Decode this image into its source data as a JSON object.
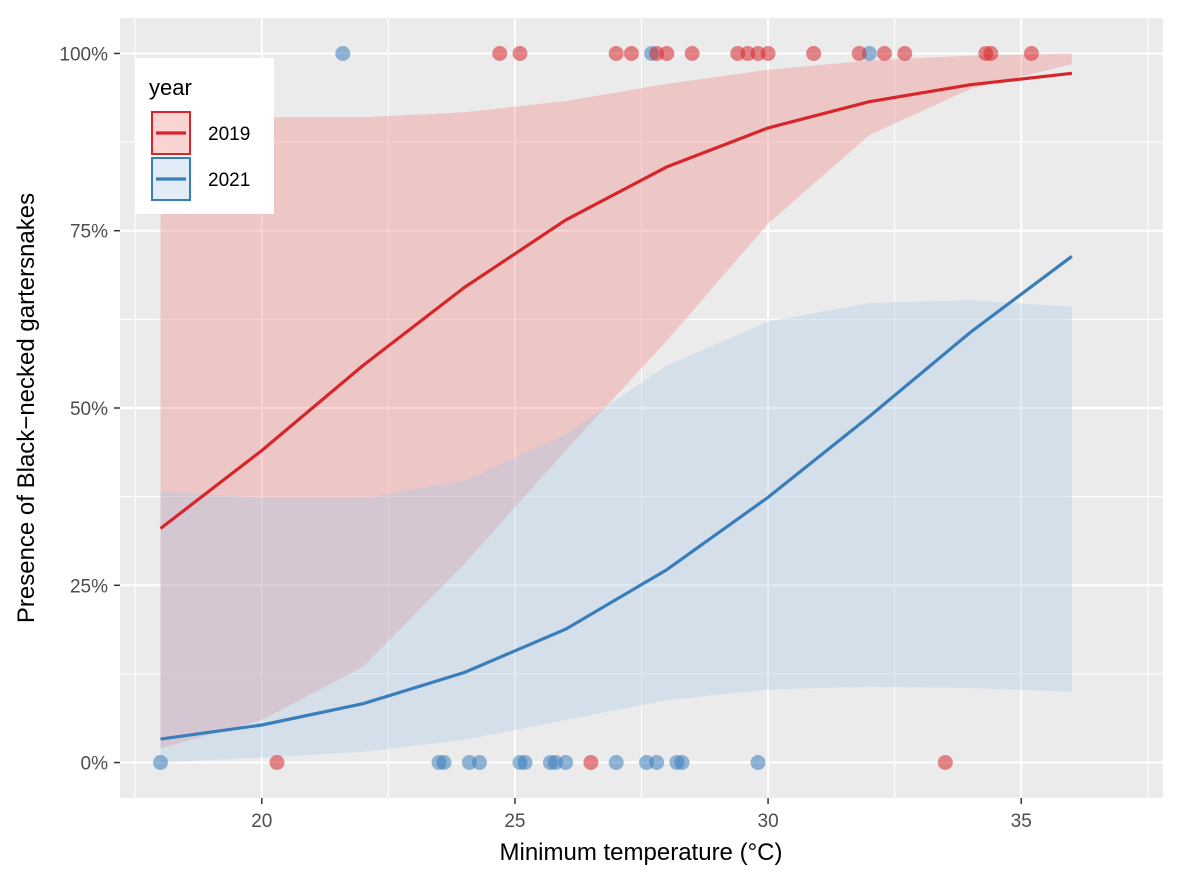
{
  "chart_data": {
    "type": "line",
    "title": "",
    "xlabel": "Minimum temperature (°C)",
    "ylabel": "Presence of Black−necked gartersnakes",
    "xlim": [
      17.2,
      37.8
    ],
    "ylim": [
      -0.05,
      1.05
    ],
    "x_ticks": [
      20,
      25,
      30,
      35
    ],
    "x_tick_labels": [
      "20",
      "25",
      "30",
      "35"
    ],
    "y_ticks": [
      0,
      0.25,
      0.5,
      0.75,
      1.0
    ],
    "y_tick_labels": [
      "0%",
      "25%",
      "50%",
      "75%",
      "100%"
    ],
    "grid": true,
    "legend": {
      "title": "year",
      "position": "top-left"
    },
    "series": [
      {
        "name": "2019",
        "color": "#D7262B",
        "fill": "#F08080",
        "x": [
          18,
          20,
          22,
          24,
          26,
          28,
          30,
          32,
          34,
          36
        ],
        "fit": [
          0.33,
          0.44,
          0.56,
          0.67,
          0.765,
          0.84,
          0.895,
          0.932,
          0.956,
          0.972
        ],
        "lower": [
          0.02,
          0.06,
          0.135,
          0.28,
          0.44,
          0.595,
          0.76,
          0.885,
          0.95,
          0.985
        ],
        "upper": [
          0.91,
          0.91,
          0.91,
          0.917,
          0.933,
          0.957,
          0.977,
          0.99,
          0.997,
          1.0
        ],
        "points": [
          {
            "x": 20.3,
            "y": 0
          },
          {
            "x": 26.5,
            "y": 0
          },
          {
            "x": 33.5,
            "y": 0
          },
          {
            "x": 24.7,
            "y": 1
          },
          {
            "x": 25.1,
            "y": 1
          },
          {
            "x": 27.0,
            "y": 1
          },
          {
            "x": 27.3,
            "y": 1
          },
          {
            "x": 27.8,
            "y": 1
          },
          {
            "x": 28.0,
            "y": 1
          },
          {
            "x": 28.5,
            "y": 1
          },
          {
            "x": 29.4,
            "y": 1
          },
          {
            "x": 29.6,
            "y": 1
          },
          {
            "x": 29.8,
            "y": 1
          },
          {
            "x": 30.0,
            "y": 1
          },
          {
            "x": 30.9,
            "y": 1
          },
          {
            "x": 31.8,
            "y": 1
          },
          {
            "x": 32.3,
            "y": 1
          },
          {
            "x": 32.7,
            "y": 1
          },
          {
            "x": 34.3,
            "y": 1
          },
          {
            "x": 34.4,
            "y": 1
          },
          {
            "x": 35.2,
            "y": 1
          }
        ]
      },
      {
        "name": "2021",
        "color": "#3A7DBB",
        "fill": "#A8C8E4",
        "x": [
          18,
          20,
          22,
          24,
          26,
          28,
          30,
          32,
          34,
          36
        ],
        "fit": [
          0.033,
          0.053,
          0.083,
          0.127,
          0.188,
          0.272,
          0.374,
          0.488,
          0.607,
          0.714
        ],
        "lower": [
          0.0,
          0.007,
          0.015,
          0.032,
          0.06,
          0.088,
          0.103,
          0.107,
          0.105,
          0.1
        ],
        "upper": [
          0.383,
          0.373,
          0.373,
          0.397,
          0.463,
          0.56,
          0.622,
          0.648,
          0.652,
          0.643
        ],
        "points": [
          {
            "x": 18.0,
            "y": 0
          },
          {
            "x": 23.5,
            "y": 0
          },
          {
            "x": 23.6,
            "y": 0
          },
          {
            "x": 24.1,
            "y": 0
          },
          {
            "x": 24.3,
            "y": 0
          },
          {
            "x": 25.1,
            "y": 0
          },
          {
            "x": 25.2,
            "y": 0
          },
          {
            "x": 25.7,
            "y": 0
          },
          {
            "x": 25.8,
            "y": 0
          },
          {
            "x": 26.0,
            "y": 0
          },
          {
            "x": 27.0,
            "y": 0
          },
          {
            "x": 27.6,
            "y": 0
          },
          {
            "x": 27.8,
            "y": 0
          },
          {
            "x": 28.2,
            "y": 0
          },
          {
            "x": 28.3,
            "y": 0
          },
          {
            "x": 29.8,
            "y": 0
          },
          {
            "x": 21.6,
            "y": 1
          },
          {
            "x": 27.7,
            "y": 1
          },
          {
            "x": 32.0,
            "y": 1
          }
        ]
      }
    ]
  }
}
